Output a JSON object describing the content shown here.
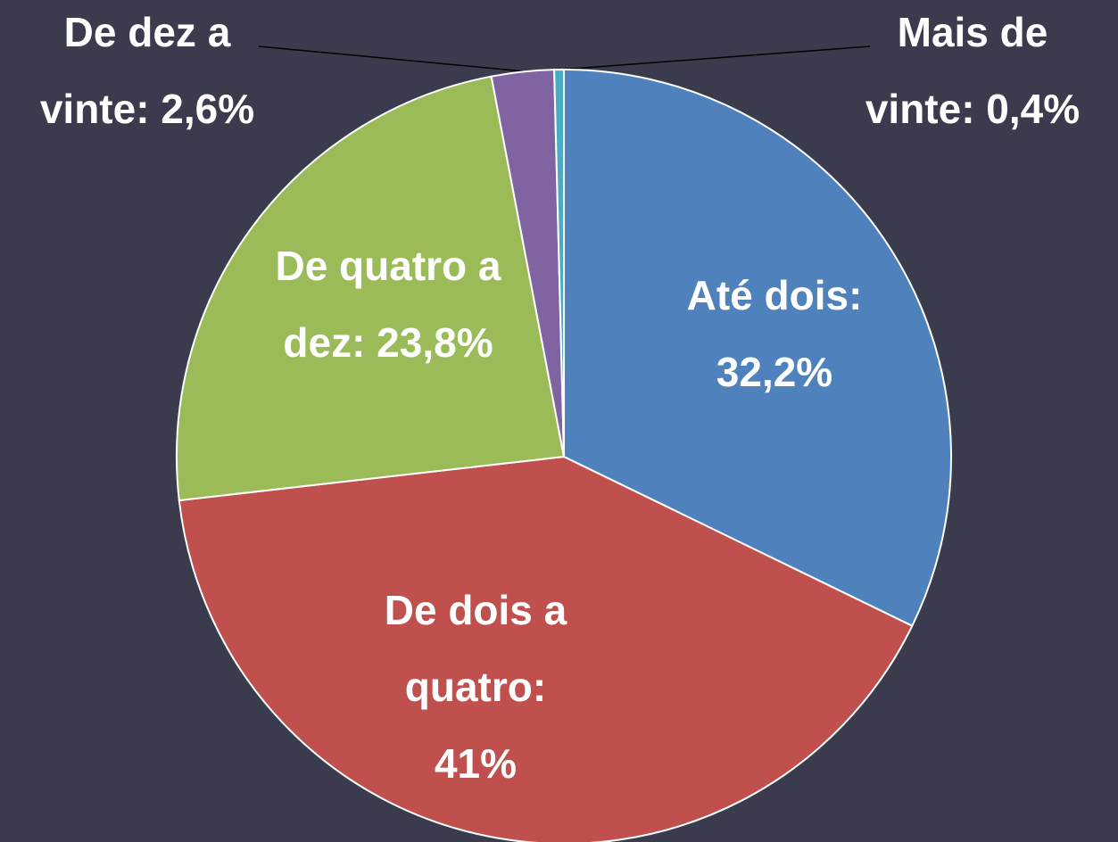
{
  "chart_data": {
    "type": "pie",
    "categories": [
      "Até dois:",
      "De dois a quatro:",
      "De quatro a dez:",
      "De dez a",
      "Mais de"
    ],
    "values": [
      32.2,
      41,
      23.8,
      2.6,
      0.4
    ],
    "value_labels": [
      "32,2%",
      "41%",
      "23,8%",
      "vinte: 2,6%",
      "vinte: 0,4%"
    ],
    "colors": [
      "#4f81bd",
      "#c0504d",
      "#9bbb59",
      "#8064a2",
      "#4bacc6"
    ]
  }
}
